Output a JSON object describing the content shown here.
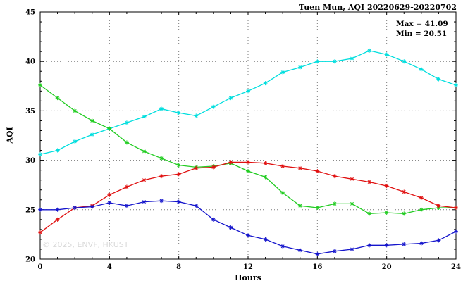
{
  "chart": {
    "title": "Tuen Mun, AQI 20220629-20220702",
    "max_label": "Max = 41.09",
    "min_label": "Min = 20.51",
    "watermark": "© 2025, ENVF, HKUST"
  },
  "chart_data": {
    "type": "line",
    "title": "Tuen Mun, AQI 20220629-20220702",
    "xlabel": "Hours",
    "ylabel": "AQI",
    "xlim": [
      0,
      24
    ],
    "ylim": [
      20,
      45
    ],
    "x_ticks": [
      0,
      4,
      8,
      12,
      16,
      20,
      24
    ],
    "y_ticks": [
      20,
      25,
      30,
      35,
      40,
      45
    ],
    "grid": true,
    "legend_position": "none",
    "annotations": [
      "Max = 41.09",
      "Min = 20.51"
    ],
    "x": [
      0,
      1,
      2,
      3,
      4,
      5,
      6,
      7,
      8,
      9,
      10,
      11,
      12,
      13,
      14,
      15,
      16,
      17,
      18,
      19,
      20,
      21,
      22,
      23,
      24
    ],
    "series": [
      {
        "name": "cyan",
        "color": "#00dede",
        "values": [
          30.6,
          31.0,
          31.9,
          32.6,
          33.2,
          33.8,
          34.4,
          35.2,
          34.8,
          34.5,
          35.4,
          36.3,
          37.0,
          37.8,
          38.9,
          39.4,
          40.0,
          40.0,
          40.3,
          41.09,
          40.7,
          40.0,
          39.2,
          38.2,
          37.6
        ]
      },
      {
        "name": "green",
        "color": "#22cc22",
        "values": [
          37.6,
          36.3,
          35.0,
          34.0,
          33.2,
          31.8,
          30.9,
          30.2,
          29.5,
          29.3,
          29.4,
          29.7,
          28.9,
          28.3,
          26.7,
          25.4,
          25.2,
          25.6,
          25.6,
          24.6,
          24.7,
          24.6,
          25.0,
          25.2,
          25.2
        ]
      },
      {
        "name": "red",
        "color": "#e01010",
        "values": [
          22.7,
          24.0,
          25.2,
          25.4,
          26.5,
          27.3,
          28.0,
          28.4,
          28.6,
          29.2,
          29.3,
          29.8,
          29.8,
          29.7,
          29.4,
          29.2,
          28.9,
          28.4,
          28.1,
          27.8,
          27.4,
          26.8,
          26.2,
          25.4,
          25.2
        ]
      },
      {
        "name": "blue",
        "color": "#1515cc",
        "values": [
          25.0,
          25.0,
          25.2,
          25.3,
          25.7,
          25.4,
          25.8,
          25.9,
          25.8,
          25.4,
          24.0,
          23.2,
          22.4,
          22.0,
          21.3,
          20.9,
          20.51,
          20.8,
          21.0,
          21.4,
          21.4,
          21.5,
          21.6,
          21.9,
          22.8
        ]
      }
    ]
  }
}
